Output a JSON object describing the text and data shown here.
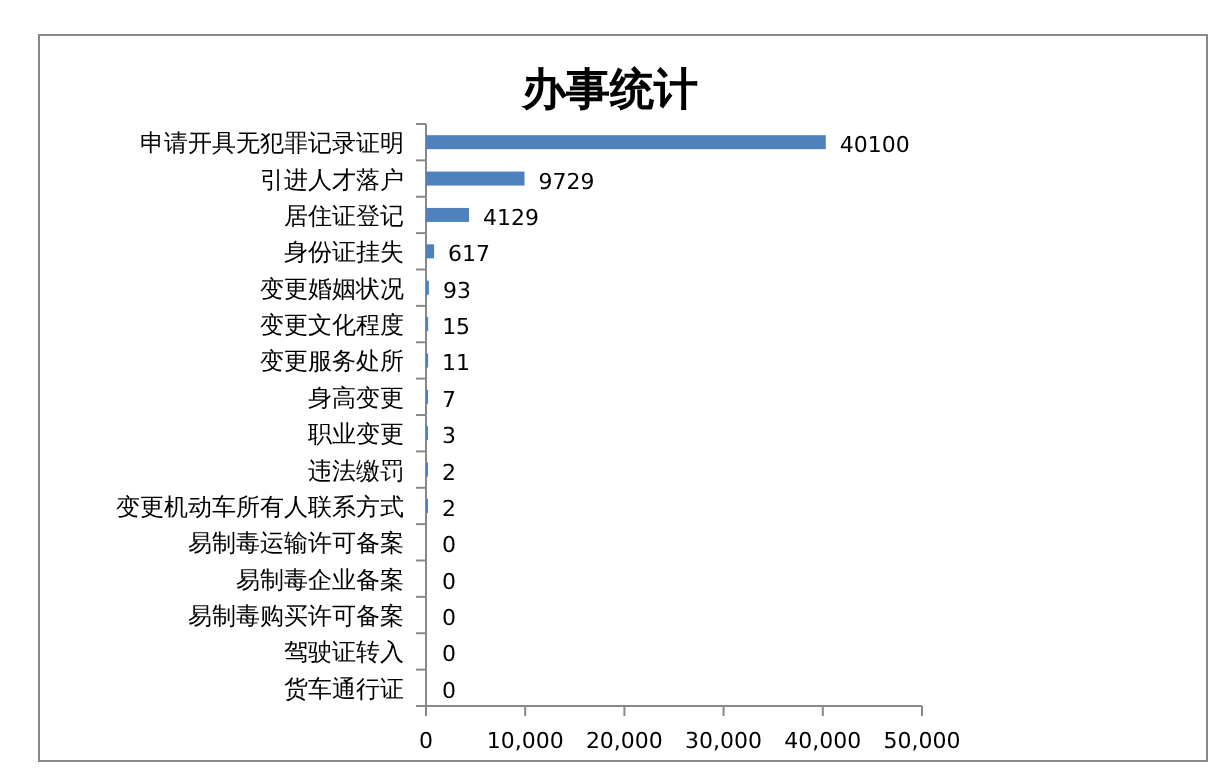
{
  "chart_data": {
    "type": "bar",
    "orientation": "horizontal",
    "title": "办事统计",
    "categories": [
      "申请开具无犯罪记录证明",
      "引进人才落户",
      "居住证登记",
      "身份证挂失",
      "变更婚姻状况",
      "变更文化程度",
      "变更服务处所",
      "身高变更",
      "职业变更",
      "违法缴罚",
      "变更机动车所有人联系方式",
      "易制毒运输许可备案",
      "易制毒企业备案",
      "易制毒购买许可备案",
      "驾驶证转入",
      "货车通行证"
    ],
    "values": [
      40100,
      9729,
      4129,
      617,
      93,
      15,
      11,
      7,
      3,
      2,
      2,
      0,
      0,
      0,
      0,
      0
    ],
    "color": "#4f81bd",
    "xlim": [
      0,
      50000
    ],
    "xticks": [
      0,
      {
        "value": 10000,
        "label": "10,000"
      },
      {
        "value": 20000,
        "label": "20,000"
      },
      {
        "value": 30000,
        "label": "30,000"
      },
      {
        "value": 40000,
        "label": "40,000"
      },
      {
        "value": 50000,
        "label": "50,000"
      }
    ],
    "data_labels": true
  }
}
